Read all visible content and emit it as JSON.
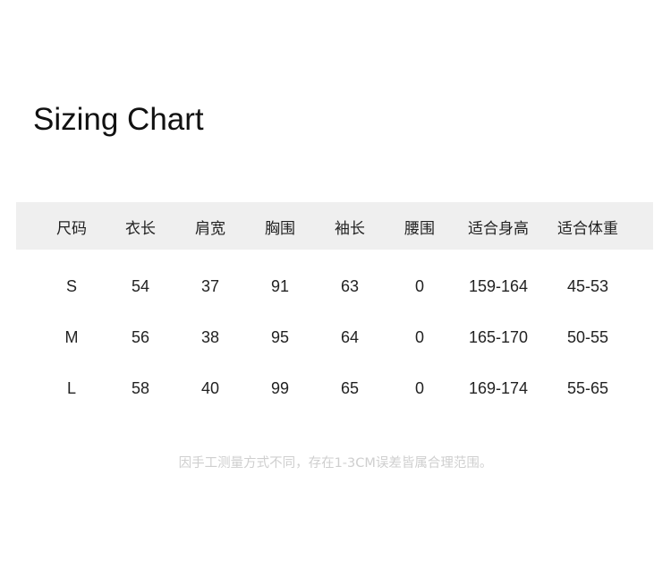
{
  "title": "Sizing Chart",
  "table": {
    "headers": [
      "尺码",
      "衣长",
      "肩宽",
      "胸围",
      "袖长",
      "腰围",
      "适合身高",
      "适合体重"
    ],
    "rows": [
      [
        "S",
        "54",
        "37",
        "91",
        "63",
        "0",
        "159-164",
        "45-53"
      ],
      [
        "M",
        "56",
        "38",
        "95",
        "64",
        "0",
        "165-170",
        "50-55"
      ],
      [
        "L",
        "58",
        "40",
        "99",
        "65",
        "0",
        "169-174",
        "55-65"
      ]
    ]
  },
  "note": "因手工测量方式不同，存在1-3CM误差皆属合理范围。",
  "colors": {
    "header_bg": "#efefef",
    "note": "#cfcfcf"
  }
}
